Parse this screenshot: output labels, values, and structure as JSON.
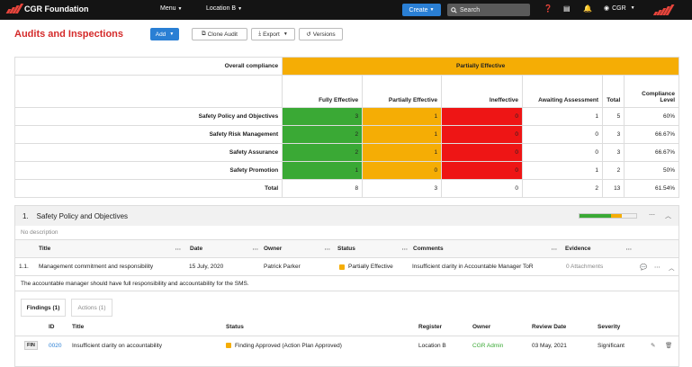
{
  "topbar": {
    "brand": "CGR Foundation",
    "menu_label": "Menu",
    "location_label": "Location B",
    "create_label": "Create",
    "search_placeholder": "Search",
    "user_label": "CGR",
    "icons": [
      "help-icon",
      "book-icon",
      "bell-icon",
      "user-icon"
    ]
  },
  "page": {
    "title": "Audits and Inspections",
    "add_label": "Add",
    "clone_label": "Clone Audit",
    "export_label": "Export",
    "versions_label": "Versions"
  },
  "compliance": {
    "overall_label": "Overall compliance",
    "overall_value": "Partially Effective",
    "headers": [
      "Fully Effective",
      "Partially Effective",
      "Ineffective",
      "Awaiting Assessment",
      "Total",
      "Compliance Level"
    ],
    "rows": [
      {
        "label": "Safety Policy and Objectives",
        "fully": "3",
        "partial": "1",
        "ineffective": "0",
        "awaiting": "1",
        "total": "5",
        "level": "60%"
      },
      {
        "label": "Safety Risk Management",
        "fully": "2",
        "partial": "1",
        "ineffective": "0",
        "awaiting": "0",
        "total": "3",
        "level": "66.67%"
      },
      {
        "label": "Safety Assurance",
        "fully": "2",
        "partial": "1",
        "ineffective": "0",
        "awaiting": "0",
        "total": "3",
        "level": "66.67%"
      },
      {
        "label": "Safety Promotion",
        "fully": "1",
        "partial": "0",
        "ineffective": "0",
        "awaiting": "1",
        "total": "2",
        "level": "50%"
      }
    ],
    "total_row": {
      "label": "Total",
      "fully": "8",
      "partial": "3",
      "ineffective": "0",
      "awaiting": "2",
      "total": "13",
      "level": "61.54%"
    },
    "colors": {
      "green": "#3aa935",
      "orange": "#f5ad05",
      "red": "#ee1515"
    }
  },
  "section": {
    "number": "1.",
    "title": "Safety Policy and Objectives",
    "progress": {
      "green": 0.55,
      "orange": 0.2,
      "empty": 0.25
    },
    "description": "No description",
    "columns": [
      "Title",
      "Date",
      "Owner",
      "Status",
      "Comments",
      "Evidence"
    ],
    "item": {
      "number": "1.1.",
      "title": "Management commitment and responsibility",
      "date": "15 July, 2020",
      "owner": "Patrick Parker",
      "status": "Partially Effective",
      "comments": "Insufficient clarity in Accountable Manager ToR",
      "evidence": "0 Attachments"
    },
    "note": "The accountable manager should have full responsibility and accountability for the SMS.",
    "tabs": [
      "Findings (1)",
      "Actions (1)"
    ],
    "findings_columns": [
      "ID",
      "Title",
      "Status",
      "Register",
      "Owner",
      "Review Date",
      "Severity"
    ],
    "finding": {
      "badge": "FIN",
      "id": "0020",
      "title": "Insufficient clarity on accountability",
      "status": "Finding Approved (Action Plan Approved)",
      "register": "Location B",
      "owner": "CGR Admin",
      "review_date": "03 May, 2021",
      "severity": "Significant"
    }
  }
}
